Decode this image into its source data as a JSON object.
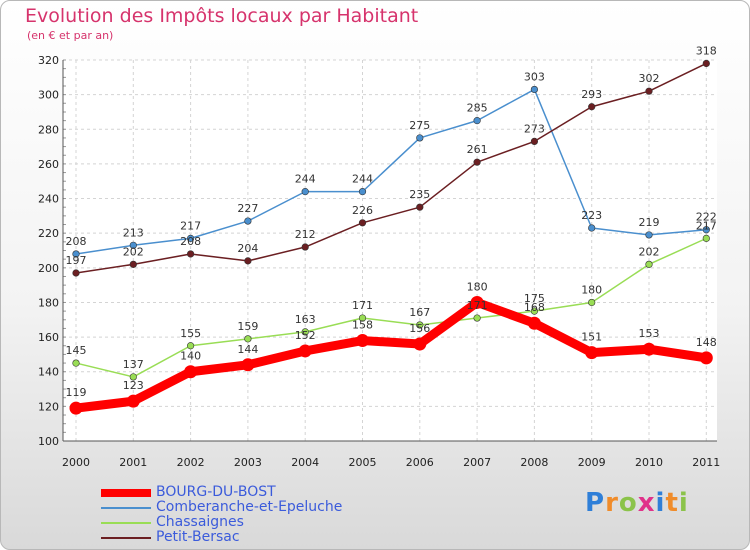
{
  "header": {
    "title": "Evolution des Impôts locaux par Habitant",
    "subtitle": "(en € et par an)"
  },
  "brand": {
    "letters": [
      "P",
      "r",
      "o",
      "x",
      "i",
      "t",
      "i"
    ],
    "letter_colors": [
      "#2f7fd8",
      "#f08c2a",
      "#8bc34a",
      "#e0328a",
      "#2f7fd8",
      "#f08c2a",
      "#8bc34a"
    ]
  },
  "chart_data": {
    "type": "line",
    "title": "Evolution des Impôts locaux par Habitant",
    "subtitle": "(en € et par an)",
    "x": [
      "2000",
      "2001",
      "2002",
      "2003",
      "2004",
      "2005",
      "2006",
      "2007",
      "2008",
      "2009",
      "2010",
      "2011"
    ],
    "ylim": [
      100,
      320
    ],
    "yticks": [
      100,
      120,
      140,
      160,
      180,
      200,
      220,
      240,
      260,
      280,
      300,
      320
    ],
    "grid": true,
    "legend_placement": "bottom-left",
    "series": [
      {
        "name": "BOURG-DU-BOST",
        "color": "#ff0000",
        "values": [
          119,
          123,
          140,
          144,
          152,
          158,
          156,
          180,
          168,
          151,
          153,
          148
        ]
      },
      {
        "name": "Comberanche-et-Epeluche",
        "color": "#4a8fce",
        "values": [
          208,
          213,
          217,
          227,
          244,
          244,
          275,
          285,
          303,
          223,
          219,
          222
        ]
      },
      {
        "name": "Chassaignes",
        "color": "#99dd55",
        "values": [
          145,
          137,
          155,
          159,
          163,
          171,
          167,
          171,
          175,
          180,
          202,
          217
        ]
      },
      {
        "name": "Petit-Bersac",
        "color": "#6b1f22",
        "values": [
          197,
          202,
          208,
          204,
          212,
          226,
          235,
          261,
          273,
          293,
          302,
          318
        ]
      }
    ]
  }
}
